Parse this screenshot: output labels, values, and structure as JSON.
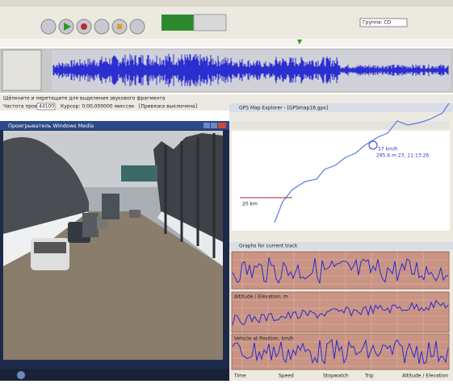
{
  "audacity": {
    "device": "Группа: CD",
    "status": "Щёлкните и перетащите для выделения звукового фрагмента",
    "rate_label": "Частота проекта",
    "rate_value": "44100",
    "cursor": "Курсор: 0:00,000000 мин:сек",
    "snap": "[Привязка выключена]"
  },
  "media_player": {
    "title": "Проигрыватель Windows Media"
  },
  "gps": {
    "title": "GPS Map Explorer - [GPSmap18.gpx]",
    "speed_label": "57 km/h",
    "point_label": "285.6 m 23, 11:13:26",
    "scale_label": "20 km",
    "graphs_title": "Graphs for current track",
    "graph_titles": [
      "Altitude / Elevation, m",
      "Vehicle at Position, km/h"
    ],
    "status": [
      "Time",
      "Speed",
      "Stopwatch",
      "Trip",
      "Altitude / Elevation"
    ]
  }
}
